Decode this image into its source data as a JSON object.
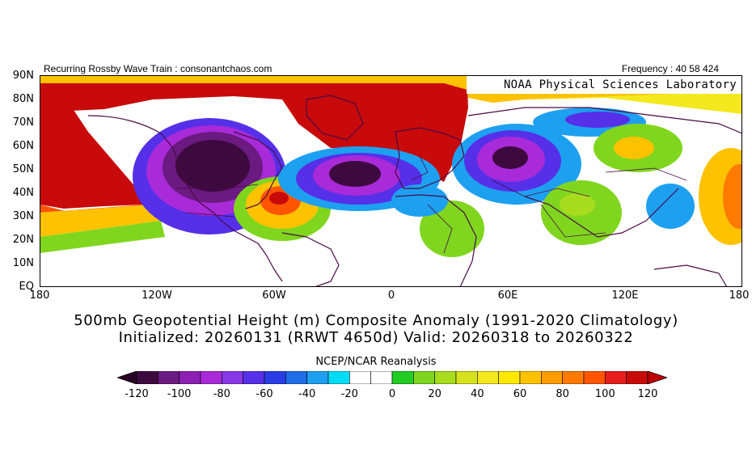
{
  "header": {
    "left_text": "Recurring Rossby Wave Train : consonantchaos.com",
    "right_text": "Frequency : 40 58 424",
    "lab_name": "NOAA Physical Sciences Laboratory"
  },
  "axes": {
    "y_ticks": [
      "90N",
      "80N",
      "70N",
      "60N",
      "50N",
      "40N",
      "30N",
      "20N",
      "10N",
      "EQ"
    ],
    "x_ticks": [
      "180",
      "120W",
      "60W",
      "0",
      "60E",
      "120E",
      "180"
    ]
  },
  "title": {
    "line1": "500mb Geopotential Height (m) Composite Anomaly (1991-2020 Climatology)",
    "line2": "Initialized: 20260131 (RRWT 4650d) Valid: 20260318 to 20260322"
  },
  "source_label": "NCEP/NCAR Reanalysis",
  "colorbar": {
    "labels": [
      "-120",
      "-100",
      "-80",
      "-60",
      "-40",
      "-20",
      "0",
      "20",
      "40",
      "60",
      "80",
      "100",
      "120"
    ],
    "colors": [
      "#3d0a3f",
      "#6a1a80",
      "#8c20b4",
      "#a82ad8",
      "#8838e8",
      "#5530e8",
      "#2a3ce6",
      "#1f6ee8",
      "#1ea0f0",
      "#00dcf4",
      "#ffffff",
      "#ffffff",
      "#22cc22",
      "#80d61e",
      "#a8dc1e",
      "#d6e21e",
      "#f4e81e",
      "#ffe800",
      "#ffc200",
      "#ff9c00",
      "#ff7a00",
      "#ff5500",
      "#e81e1e",
      "#c80a0a"
    ],
    "left_arrow": "#2a0026",
    "right_arrow": "#c00000"
  },
  "map": {
    "positive_extreme": "#c80a0a",
    "negative_extreme": "#3d0a3f",
    "coastline_color": "#4a0a48",
    "regions": [
      {
        "name": "north-america-trough",
        "sign": "negative",
        "peak": -120
      },
      {
        "name": "north-atlantic-trough",
        "sign": "negative",
        "peak": -110
      },
      {
        "name": "central-asia-trough",
        "sign": "negative",
        "peak": -100
      },
      {
        "name": "north-pacific-ridge",
        "sign": "positive",
        "peak": 120
      },
      {
        "name": "arctic-ridge",
        "sign": "positive",
        "peak": 120
      },
      {
        "name": "subtropical-atlantic-ridge",
        "sign": "positive",
        "peak": 110
      }
    ]
  }
}
